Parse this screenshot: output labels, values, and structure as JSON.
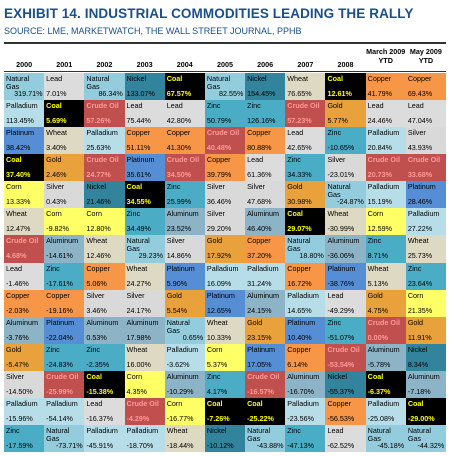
{
  "chart_data": {
    "type": "table",
    "title": "EXHIBIT 14. INDUSTRIAL COMMODITIES LEADING THE RALLY",
    "subtitle": "SOURCE: LME, MARKETWATCH, THE WALL STREET JOURNAL, PPHB",
    "columns": [
      "2000",
      "2001",
      "2002",
      "2003",
      "2004",
      "2005",
      "2006",
      "2007",
      "2008",
      "March 2009 YTD",
      "May 2009 YTD"
    ],
    "colors": {
      "Natural Gas": "#93cddd",
      "Lead": "#dcdcdc",
      "Nickel": "#31849b",
      "Coal": "#000000",
      "Zinc": "#4bacc6",
      "Wheat": "#ddd9c3",
      "Copper": "#f79646",
      "Palladium": "#b7dee8",
      "Gold": "#e9a23b",
      "Crude Oil": "#c0504d",
      "Platinum": "#558ed5",
      "Silver": "#d9d9d9",
      "Corn": "#ffff66",
      "Aluminum": "#8db3c7",
      "Crude Oil ": "#c0504d"
    },
    "text_colors": {
      "Coal": "#ffff00",
      "Crude Oil": "#ff9999"
    },
    "rows": [
      [
        [
          "Natural Gas",
          "319.71%"
        ],
        [
          "Lead",
          "7.01%"
        ],
        [
          "Natural Gas",
          "86.34%"
        ],
        [
          "Nickel",
          "133.07%"
        ],
        [
          "Coal",
          "67.57%"
        ],
        [
          "Natural Gas",
          "82.55%"
        ],
        [
          "Nickel",
          "154.45%"
        ],
        [
          "Wheat",
          "76.65%"
        ],
        [
          "Coal",
          "12.61%"
        ],
        [
          "Copper",
          "41.79%"
        ],
        [
          "Copper",
          "69.43%"
        ]
      ],
      [
        [
          "Palladium",
          "113.45%"
        ],
        [
          "Coal",
          "5.69%"
        ],
        [
          "Crude Oil",
          "57.26%"
        ],
        [
          "Lead",
          "75.44%"
        ],
        [
          "Lead",
          "42.80%"
        ],
        [
          "Zinc",
          "50.79%"
        ],
        [
          "Zinc",
          "126.16%"
        ],
        [
          "Crude Oil",
          "57.23%"
        ],
        [
          "Gold",
          "5.77%"
        ],
        [
          "Lead",
          "24.46%"
        ],
        [
          "Lead",
          "47.04%"
        ]
      ],
      [
        [
          "Platinum",
          "38.42%"
        ],
        [
          "Wheat",
          "3.40%"
        ],
        [
          "Palladium",
          "25.63%"
        ],
        [
          "Copper",
          "51.11%"
        ],
        [
          "Copper",
          "41.30%"
        ],
        [
          "Crude Oil",
          "40.48%"
        ],
        [
          "Copper",
          "80.88%"
        ],
        [
          "Lead",
          "42.65%"
        ],
        [
          "Zinc",
          "-10.65%"
        ],
        [
          "Palladium",
          "20.84%"
        ],
        [
          "Silver",
          "43.93%"
        ]
      ],
      [
        [
          "Coal",
          "37.40%"
        ],
        [
          "Gold",
          "2.46%"
        ],
        [
          "Crude Oil",
          "24.77%"
        ],
        [
          "Platinum",
          "35.61%"
        ],
        [
          "Crude Oil",
          "34.50%"
        ],
        [
          "Copper",
          "39.79%"
        ],
        [
          "Lead",
          "61.36%"
        ],
        [
          "Zinc",
          "34.33%"
        ],
        [
          "Silver",
          "-23.01%"
        ],
        [
          "Crude Oil",
          "20.73%"
        ],
        [
          "Crude Oil",
          "33.68%"
        ]
      ],
      [
        [
          "Corn",
          "13.33%"
        ],
        [
          "Silver",
          "0.43%"
        ],
        [
          "Nickel",
          "21.46%"
        ],
        [
          "Coal",
          "34.55%"
        ],
        [
          "Zinc",
          "25.99%"
        ],
        [
          "Silver",
          "36.46%"
        ],
        [
          "Silver",
          "47.68%"
        ],
        [
          "Gold",
          "30.98%"
        ],
        [
          "Natural Gas",
          "-24.87%"
        ],
        [
          "Palladium",
          "15.19%"
        ],
        [
          "Platinum",
          "28.46%"
        ]
      ],
      [
        [
          "Wheat",
          "12.47%"
        ],
        [
          "Corn",
          "-9.82%"
        ],
        [
          "Corn",
          "12.80%"
        ],
        [
          "Zinc",
          "34.49%"
        ],
        [
          "Aluminum",
          "23.52%"
        ],
        [
          "Silver",
          "29.20%"
        ],
        [
          "Aluminum",
          "46.40%"
        ],
        [
          "Coal",
          "29.07%"
        ],
        [
          "Wheat",
          "-30.99%"
        ],
        [
          "Corn",
          "12.59%"
        ],
        [
          "Palladium",
          "27.22%"
        ]
      ],
      [
        [
          "Crude Oil",
          "4.68%"
        ],
        [
          "Aluminum",
          "-14.61%"
        ],
        [
          "Wheat",
          "12.46%"
        ],
        [
          "Natural Gas",
          "29.23%"
        ],
        [
          "Silver",
          "14.86%"
        ],
        [
          "Gold",
          "17.92%"
        ],
        [
          "Copper",
          "37.20%"
        ],
        [
          "Natural Gas",
          "18.80%"
        ],
        [
          "Aluminum",
          "-36.06%"
        ],
        [
          "Zinc",
          "8.71%"
        ],
        [
          "Wheat",
          "25.73%"
        ]
      ],
      [
        [
          "Lead",
          "-1.46%"
        ],
        [
          "Zinc",
          "-17.61%"
        ],
        [
          "Copper",
          "5.06%"
        ],
        [
          "Wheat",
          "24.27%"
        ],
        [
          "Platinum",
          "5.90%"
        ],
        [
          "Palladium",
          "16.09%"
        ],
        [
          "Palladium",
          "31.24%"
        ],
        [
          "Copper",
          "16.72%"
        ],
        [
          "Platinum",
          "-38.76%"
        ],
        [
          "Wheat",
          "5.13%"
        ],
        [
          "Zinc",
          "23.64%"
        ]
      ],
      [
        [
          "Copper",
          "-2.03%"
        ],
        [
          "Copper",
          "-19.16%"
        ],
        [
          "Silver",
          "3.46%"
        ],
        [
          "Silver",
          "24.17%"
        ],
        [
          "Gold",
          "5.54%"
        ],
        [
          "Platinum",
          "12.65%"
        ],
        [
          "Aluminum",
          "24.15%"
        ],
        [
          "Palladium",
          "14.65%"
        ],
        [
          "Lead",
          "-49.29%"
        ],
        [
          "Gold",
          "4.75%"
        ],
        [
          "Corn",
          "21.35%"
        ]
      ],
      [
        [
          "Aluminum",
          "-3.76%"
        ],
        [
          "Platinum",
          "-22.04%"
        ],
        [
          "Aluminum",
          "0.53%"
        ],
        [
          "Aluminum",
          "17.98%"
        ],
        [
          "Natural Gas",
          "0.65%"
        ],
        [
          "Wheat",
          "10.33%"
        ],
        [
          "Gold",
          "23.15%"
        ],
        [
          "Platinum",
          "10.40%"
        ],
        [
          "Zinc",
          "-51.07%"
        ],
        [
          "Crude Oil",
          "0.00%"
        ],
        [
          "Gold",
          "11.91%"
        ]
      ],
      [
        [
          "Gold",
          "-5.47%"
        ],
        [
          "Zinc",
          "-24.83%"
        ],
        [
          "Zinc",
          "-2.35%"
        ],
        [
          "Wheat",
          "16.00%"
        ],
        [
          "Palladium",
          "-3.62%"
        ],
        [
          "Corn",
          "5.37%"
        ],
        [
          "Platinum",
          "17.05%"
        ],
        [
          "Copper",
          "6.14%"
        ],
        [
          "Crude Oil",
          "-53.54%"
        ],
        [
          "Aluminum",
          "-5.78%"
        ],
        [
          "Nickel",
          "8.34%"
        ]
      ],
      [
        [
          "Silver",
          "-14.50%"
        ],
        [
          "Crude Oil",
          "-25.99%"
        ],
        [
          "Coal",
          "-15.38%"
        ],
        [
          "Corn",
          "4.35%"
        ],
        [
          "Aluminum",
          "-10.29%"
        ],
        [
          "Zinc",
          "4.17%"
        ],
        [
          "Crude Oil",
          "-16.57%"
        ],
        [
          "Aluminum",
          "-16.70%"
        ],
        [
          "Nickel",
          "-55.37%"
        ],
        [
          "Coal",
          "-6.37%"
        ],
        [
          "Aluminum",
          "-7.18%"
        ]
      ],
      [
        [
          "Palladium",
          "-15.96%"
        ],
        [
          "Palladium",
          "-54.14%"
        ],
        [
          "Lead",
          "-16.37%"
        ],
        [
          "Crude Oil",
          "-4.29%"
        ],
        [
          "Corn",
          "-16.77%"
        ],
        [
          "Coal",
          "-7.26%"
        ],
        [
          "Coal",
          "-25.22%"
        ],
        [
          "Palladium",
          "-23.56%"
        ],
        [
          "Copper",
          "-56.53%"
        ],
        [
          "Palladium",
          "-25.08%"
        ],
        [
          "Coal",
          "-29.00%"
        ]
      ],
      [
        [
          "Zinc",
          "-17.59%"
        ],
        [
          "Natural Gas",
          "-73.71%"
        ],
        [
          "Palladium",
          "-45.91%"
        ],
        [
          "Palladium",
          "-18.70%"
        ],
        [
          "Wheat",
          "-18.44%"
        ],
        [
          "Nickel",
          "-10.12%"
        ],
        [
          "Natural Gas",
          "-43.88%"
        ],
        [
          "Zinc",
          "-47.13%"
        ],
        [
          "Lead",
          "-62.52%"
        ],
        [
          "Natural Gas",
          "-45.18%"
        ],
        [
          "Natural Gas",
          "-44.32%"
        ]
      ]
    ]
  }
}
